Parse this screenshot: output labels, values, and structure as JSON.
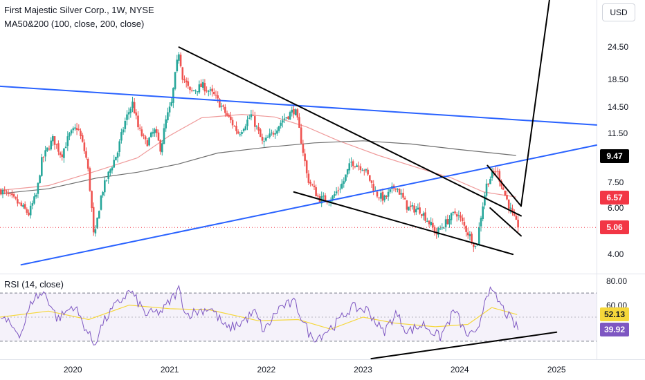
{
  "header": {
    "title": "First Majestic Silver Corp., 1W, NYSE",
    "indicator": "MA50&200 (100, close, 200, close)",
    "currency": "USD"
  },
  "rsi_panel": {
    "label": "RSI (14, close)"
  },
  "colors": {
    "up": "#26a69a",
    "down": "#ef5350",
    "ma100": "#ef9a9a",
    "ma200": "#6d6d6d",
    "trendline_blue": "#2962ff",
    "trendline_black": "#000000",
    "rsi": "#7e57c2",
    "rsi_ma": "#f5d73b",
    "price_tag": "#f23645",
    "rsi_tag": "#7e57c2",
    "current_line": "#f23645"
  },
  "chart_data": [
    {
      "type": "candlestick",
      "title": "First Majestic Silver Corp., 1W, NYSE",
      "x_axis": {
        "type": "date",
        "ticks": [
          "2020",
          "2021",
          "2022",
          "2023",
          "2024",
          "2025"
        ],
        "range": [
          "2019-04",
          "2025-06"
        ]
      },
      "y_axis": {
        "scale": "log",
        "ticks": [
          4.0,
          6.0,
          7.5,
          11.5,
          14.5,
          18.5,
          24.5
        ],
        "range": [
          3.4,
          37
        ]
      },
      "price_points": [
        [
          "2019-04-01",
          7.0
        ],
        [
          "2019-06-01",
          6.3
        ],
        [
          "2019-07-15",
          5.7
        ],
        [
          "2019-08-15",
          6.8
        ],
        [
          "2019-09-01",
          9.0
        ],
        [
          "2019-10-15",
          11.0
        ],
        [
          "2019-11-15",
          9.5
        ],
        [
          "2019-12-15",
          11.3
        ],
        [
          "2020-01-15",
          12.2
        ],
        [
          "2020-02-20",
          9.0
        ],
        [
          "2020-03-18",
          4.4
        ],
        [
          "2020-04-15",
          6.8
        ],
        [
          "2020-05-20",
          8.5
        ],
        [
          "2020-06-15",
          9.8
        ],
        [
          "2020-07-15",
          13.0
        ],
        [
          "2020-08-10",
          15.0
        ],
        [
          "2020-09-01",
          12.0
        ],
        [
          "2020-10-01",
          10.5
        ],
        [
          "2020-11-01",
          11.8
        ],
        [
          "2020-11-25",
          10.0
        ],
        [
          "2020-12-15",
          13.0
        ],
        [
          "2021-01-05",
          15.0
        ],
        [
          "2021-02-01",
          23.5
        ],
        [
          "2021-02-15",
          19.0
        ],
        [
          "2021-03-15",
          16.5
        ],
        [
          "2021-05-01",
          17.5
        ],
        [
          "2021-06-15",
          16.0
        ],
        [
          "2021-08-01",
          13.5
        ],
        [
          "2021-09-15",
          11.5
        ],
        [
          "2021-11-01",
          13.5
        ],
        [
          "2021-12-15",
          10.5
        ],
        [
          "2022-01-20",
          11.5
        ],
        [
          "2022-03-01",
          13.0
        ],
        [
          "2022-04-15",
          14.2
        ],
        [
          "2022-05-15",
          10.0
        ],
        [
          "2022-06-01",
          7.8
        ],
        [
          "2022-07-15",
          6.5
        ],
        [
          "2022-09-01",
          6.5
        ],
        [
          "2022-10-15",
          7.5
        ],
        [
          "2022-11-15",
          9.0
        ],
        [
          "2023-01-01",
          8.5
        ],
        [
          "2023-02-15",
          6.8
        ],
        [
          "2023-03-20",
          6.5
        ],
        [
          "2023-05-01",
          7.3
        ],
        [
          "2023-06-15",
          6.0
        ],
        [
          "2023-08-01",
          5.9
        ],
        [
          "2023-10-01",
          4.8
        ],
        [
          "2023-11-15",
          5.4
        ],
        [
          "2023-12-15",
          5.8
        ],
        [
          "2024-01-20",
          5.0
        ],
        [
          "2024-03-01",
          4.2
        ],
        [
          "2024-04-10",
          7.5
        ],
        [
          "2024-05-15",
          8.4
        ],
        [
          "2024-06-15",
          6.8
        ],
        [
          "2024-07-15",
          5.6
        ],
        [
          "2024-08-05",
          5.06
        ]
      ],
      "last_close": 5.06,
      "highlighted_levels": [
        9.47,
        6.57
      ],
      "series": [
        {
          "name": "MA 100",
          "points": [
            [
              "2019-04-01",
              7.0
            ],
            [
              "2019-10-01",
              7.3
            ],
            [
              "2020-04-01",
              8.3
            ],
            [
              "2020-09-01",
              9.3
            ],
            [
              "2021-01-01",
              11.3
            ],
            [
              "2021-05-01",
              13.2
            ],
            [
              "2021-10-01",
              13.6
            ],
            [
              "2022-02-01",
              13.3
            ],
            [
              "2022-06-01",
              12.2
            ],
            [
              "2022-10-01",
              10.8
            ],
            [
              "2023-03-01",
              9.5
            ],
            [
              "2023-08-01",
              8.5
            ],
            [
              "2023-12-01",
              7.8
            ],
            [
              "2024-04-01",
              6.9
            ],
            [
              "2024-08-01",
              6.6
            ]
          ]
        },
        {
          "name": "MA 200",
          "points": [
            [
              "2019-04-01",
              6.8
            ],
            [
              "2019-10-01",
              7.1
            ],
            [
              "2020-04-01",
              7.8
            ],
            [
              "2020-09-01",
              8.2
            ],
            [
              "2021-02-01",
              8.8
            ],
            [
              "2021-07-01",
              9.7
            ],
            [
              "2022-01-01",
              10.2
            ],
            [
              "2022-07-01",
              10.6
            ],
            [
              "2023-01-01",
              10.8
            ],
            [
              "2023-07-01",
              10.5
            ],
            [
              "2024-01-01",
              10.0
            ],
            [
              "2024-08-01",
              9.5
            ]
          ]
        }
      ]
    },
    {
      "type": "line",
      "title": "RSI (14, close)",
      "y_axis": {
        "ticks": [
          60.0,
          80.0
        ],
        "range": [
          15,
          85
        ],
        "bands": [
          30,
          70
        ]
      },
      "series": [
        {
          "name": "RSI",
          "points": [
            [
              "2019-04-01",
              50
            ],
            [
              "2019-06-15",
              36
            ],
            [
              "2019-08-01",
              66
            ],
            [
              "2019-09-15",
              70
            ],
            [
              "2019-11-01",
              48
            ],
            [
              "2020-01-01",
              60
            ],
            [
              "2020-03-18",
              27
            ],
            [
              "2020-04-20",
              45
            ],
            [
              "2020-06-01",
              58
            ],
            [
              "2020-08-01",
              72
            ],
            [
              "2020-10-01",
              52
            ],
            [
              "2020-12-01",
              55
            ],
            [
              "2021-02-01",
              73
            ],
            [
              "2021-03-01",
              52
            ],
            [
              "2021-06-01",
              58
            ],
            [
              "2021-08-01",
              40
            ],
            [
              "2021-09-15",
              44
            ],
            [
              "2021-11-15",
              54
            ],
            [
              "2021-12-20",
              38
            ],
            [
              "2022-02-15",
              58
            ],
            [
              "2022-04-15",
              62
            ],
            [
              "2022-06-15",
              33
            ],
            [
              "2022-07-15",
              34
            ],
            [
              "2022-09-15",
              44
            ],
            [
              "2022-11-15",
              58
            ],
            [
              "2023-01-15",
              56
            ],
            [
              "2023-03-15",
              37
            ],
            [
              "2023-05-01",
              53
            ],
            [
              "2023-06-15",
              38
            ],
            [
              "2023-08-15",
              44
            ],
            [
              "2023-10-15",
              33
            ],
            [
              "2023-12-10",
              56
            ],
            [
              "2024-01-20",
              36
            ],
            [
              "2024-03-01",
              34
            ],
            [
              "2024-04-10",
              73
            ],
            [
              "2024-05-15",
              66
            ],
            [
              "2024-06-15",
              55
            ],
            [
              "2024-08-05",
              39.92
            ]
          ]
        },
        {
          "name": "RSI MA",
          "points": [
            [
              "2019-04-01",
              50
            ],
            [
              "2019-10-01",
              55
            ],
            [
              "2020-03-01",
              48
            ],
            [
              "2020-08-01",
              60
            ],
            [
              "2021-01-01",
              57
            ],
            [
              "2021-06-01",
              56
            ],
            [
              "2021-12-01",
              47
            ],
            [
              "2022-05-01",
              48
            ],
            [
              "2022-09-01",
              40
            ],
            [
              "2023-01-01",
              50
            ],
            [
              "2023-05-01",
              45
            ],
            [
              "2023-10-01",
              42
            ],
            [
              "2024-02-01",
              44
            ],
            [
              "2024-05-01",
              58
            ],
            [
              "2024-08-05",
              52.13
            ]
          ]
        }
      ],
      "tags": [
        52.13,
        39.92
      ]
    }
  ]
}
